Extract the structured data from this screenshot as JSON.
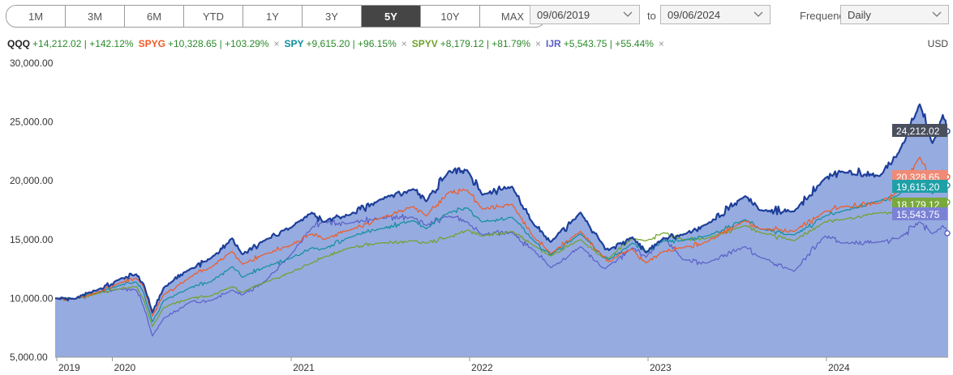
{
  "periods": [
    "1M",
    "3M",
    "6M",
    "YTD",
    "1Y",
    "3Y",
    "5Y",
    "10Y",
    "MAX"
  ],
  "active_period": "5Y",
  "date_from": "09/06/2019",
  "to_label": "to",
  "date_to": "09/06/2024",
  "frequency_label": "Frequency",
  "frequency_value": "Daily",
  "currency": "USD",
  "legend": [
    {
      "ticker": "QQQ",
      "change": "+14,212.02 | +142.12%",
      "color": "#1d3f9a",
      "removable": false
    },
    {
      "ticker": "SPYG",
      "change": "+10,328.65 | +103.29%",
      "color": "#f05a22",
      "removable": true
    },
    {
      "ticker": "SPY",
      "change": "+9,615.20 | +96.15%",
      "color": "#0e8f9c",
      "removable": true
    },
    {
      "ticker": "SPYV",
      "change": "+8,179.12 | +81.79%",
      "color": "#6fa229",
      "removable": true
    },
    {
      "ticker": "IJR",
      "change": "+5,543.75 | +55.44%",
      "color": "#5b5fc7",
      "removable": true
    }
  ],
  "chart_data": {
    "type": "line",
    "x": [
      "2019-09-06",
      "2019-10-15",
      "2019-12-01",
      "2020-01-15",
      "2020-02-19",
      "2020-03-05",
      "2020-03-23",
      "2020-04-15",
      "2020-06-08",
      "2020-07-20",
      "2020-09-02",
      "2020-09-23",
      "2020-11-10",
      "2020-12-31",
      "2021-02-12",
      "2021-03-08",
      "2021-05-01",
      "2021-07-01",
      "2021-09-07",
      "2021-10-04",
      "2021-11-19",
      "2021-12-27",
      "2022-01-27",
      "2022-03-29",
      "2022-05-12",
      "2022-06-16",
      "2022-08-16",
      "2022-09-30",
      "2022-10-13",
      "2022-11-30",
      "2022-12-28",
      "2023-02-02",
      "2023-03-13",
      "2023-05-01",
      "2023-07-19",
      "2023-08-18",
      "2023-10-27",
      "2023-12-29",
      "2024-02-01",
      "2024-04-19",
      "2024-05-28",
      "2024-07-10",
      "2024-08-05",
      "2024-08-26",
      "2024-09-06"
    ],
    "series": [
      {
        "name": "QQQ",
        "values": [
          10000,
          9950,
          10700,
          11600,
          12050,
          11200,
          8800,
          10900,
          12500,
          13400,
          15100,
          13750,
          15000,
          16000,
          17300,
          16500,
          17100,
          18400,
          19300,
          18250,
          20800,
          20900,
          18800,
          19500,
          16300,
          14800,
          17300,
          14650,
          14100,
          15200,
          13900,
          15100,
          15400,
          16300,
          18700,
          17500,
          17400,
          20200,
          20800,
          20400,
          22400,
          26500,
          23200,
          25600,
          24212.02
        ]
      },
      {
        "name": "SPYG",
        "values": [
          10000,
          9950,
          10500,
          11300,
          11700,
          11000,
          8500,
          10300,
          11800,
          12600,
          14000,
          12900,
          13800,
          14500,
          15500,
          15000,
          15800,
          16800,
          17800,
          17000,
          19000,
          19200,
          17600,
          18000,
          15200,
          13800,
          15700,
          13600,
          13100,
          14200,
          13000,
          14000,
          14300,
          14800,
          16600,
          15900,
          15700,
          17400,
          17800,
          18100,
          19100,
          22000,
          19800,
          20900,
          20328.65
        ]
      },
      {
        "name": "SPY",
        "values": [
          10000,
          9950,
          10500,
          11100,
          11400,
          10500,
          8000,
          9800,
          10900,
          11400,
          12700,
          11800,
          12700,
          13400,
          14300,
          14200,
          15200,
          15900,
          16600,
          15900,
          17300,
          17700,
          16500,
          16900,
          14900,
          13700,
          15500,
          13600,
          13300,
          14700,
          14000,
          14900,
          14900,
          15300,
          16700,
          15900,
          15400,
          17000,
          17400,
          18300,
          18800,
          20300,
          18900,
          20000,
          19615.2
        ]
      },
      {
        "name": "SPYV",
        "values": [
          10000,
          9950,
          10400,
          10800,
          11000,
          9900,
          7600,
          9200,
          10000,
          10200,
          11000,
          10500,
          11400,
          12200,
          13000,
          13500,
          14300,
          14700,
          14900,
          14700,
          15200,
          15800,
          15300,
          15700,
          14500,
          13600,
          15000,
          13500,
          13400,
          15100,
          14900,
          15600,
          15000,
          15100,
          16200,
          15600,
          14900,
          16500,
          16700,
          17300,
          17400,
          17600,
          17500,
          18300,
          18179.12
        ]
      },
      {
        "name": "IJR",
        "values": [
          10000,
          9950,
          10500,
          10800,
          10700,
          9300,
          6800,
          8300,
          9700,
          9800,
          10700,
          10300,
          11500,
          13700,
          16000,
          16500,
          16400,
          16800,
          16900,
          16200,
          17000,
          16500,
          15400,
          15600,
          14100,
          12600,
          14400,
          12600,
          12800,
          14300,
          13500,
          15200,
          13300,
          13000,
          14400,
          13500,
          12300,
          15300,
          14700,
          14800,
          15100,
          16500,
          15500,
          16200,
          15543.75
        ]
      }
    ],
    "end_labels": [
      "24,212.02",
      "20,328.65",
      "19,615.20",
      "18,179.12",
      "15,543.75"
    ],
    "y_ticks": [
      "5,000.00",
      "10,000.00",
      "15,000.00",
      "20,000.00",
      "25,000.00",
      "30,000.00"
    ],
    "x_ticks": [
      "2019",
      "2020",
      "2021",
      "2022",
      "2023",
      "2024"
    ],
    "ylim": [
      5000,
      30000
    ],
    "area_series": "QQQ",
    "grid": false
  }
}
